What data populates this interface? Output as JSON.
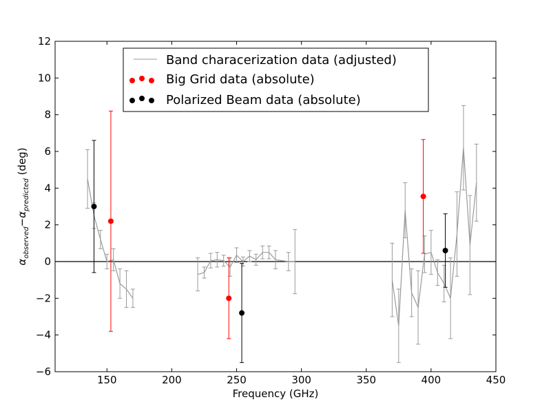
{
  "chart_data": {
    "type": "line",
    "title": "",
    "xlabel": "Frequency (GHz)",
    "ylabel_main": "α",
    "ylabel_sub1": "observed",
    "ylabel_minus": "−",
    "ylabel_main2": "α",
    "ylabel_sub2": "predicted",
    "ylabel_unit": " (deg)",
    "xlim": [
      110,
      450
    ],
    "ylim": [
      -6,
      12
    ],
    "xticks": [
      150,
      200,
      250,
      300,
      350,
      400,
      450
    ],
    "yticks": [
      -6,
      -4,
      -2,
      0,
      2,
      4,
      6,
      8,
      10,
      12
    ],
    "xtick_labels": [
      "150",
      "200",
      "250",
      "300",
      "350",
      "400",
      "450"
    ],
    "ytick_labels": [
      "−6",
      "−4",
      "−2",
      "0",
      "2",
      "4",
      "6",
      "8",
      "10",
      "12"
    ],
    "legend_position": "top-center",
    "zero_line": true,
    "series": [
      {
        "name": "Band characerization data (adjusted)",
        "style": "line-errorbar",
        "color": "#999999",
        "segments": [
          [
            {
              "x": 135,
              "y": 4.5,
              "err": 1.6
            },
            {
              "x": 140,
              "y": 2.5,
              "err": 0.7
            },
            {
              "x": 145,
              "y": 1.2,
              "err": 0.5
            },
            {
              "x": 150,
              "y": 0.0,
              "err": 0.4
            },
            {
              "x": 155,
              "y": 0.1,
              "err": 0.6
            },
            {
              "x": 160,
              "y": -1.2,
              "err": 0.8
            },
            {
              "x": 165,
              "y": -1.5,
              "err": 1.0
            },
            {
              "x": 170,
              "y": -2.0,
              "err": 0.5
            }
          ],
          [
            {
              "x": 220,
              "y": -0.7,
              "err": 0.9
            },
            {
              "x": 225,
              "y": -0.6,
              "err": 0.3
            },
            {
              "x": 230,
              "y": 0.05,
              "err": 0.4
            },
            {
              "x": 235,
              "y": 0.1,
              "err": 0.4
            },
            {
              "x": 240,
              "y": 0.05,
              "err": 0.3
            },
            {
              "x": 245,
              "y": -0.3,
              "err": 0.5
            },
            {
              "x": 250,
              "y": 0.35,
              "err": 0.4
            },
            {
              "x": 255,
              "y": 0.0,
              "err": 0.25
            },
            {
              "x": 260,
              "y": 0.3,
              "err": 0.3
            },
            {
              "x": 265,
              "y": 0.1,
              "err": 0.3
            },
            {
              "x": 270,
              "y": 0.5,
              "err": 0.35
            },
            {
              "x": 275,
              "y": 0.5,
              "err": 0.35
            },
            {
              "x": 280,
              "y": 0.1,
              "err": 0.5
            },
            {
              "x": 290,
              "y": 0.0,
              "err": 0.5
            },
            {
              "x": 295,
              "y": 0.0,
              "err": 1.75
            }
          ],
          [
            {
              "x": 370,
              "y": -1.0,
              "err": 2.0
            },
            {
              "x": 375,
              "y": -3.5,
              "err": 2.0
            },
            {
              "x": 380,
              "y": 2.8,
              "err": 1.5
            },
            {
              "x": 385,
              "y": -1.7,
              "err": 1.3
            },
            {
              "x": 390,
              "y": -2.5,
              "err": 2.0
            },
            {
              "x": 395,
              "y": 0.4,
              "err": 1.0
            },
            {
              "x": 400,
              "y": 0.5,
              "err": 1.2
            },
            {
              "x": 405,
              "y": -0.6,
              "err": 0.7
            },
            {
              "x": 410,
              "y": -1.2,
              "err": 1.0
            },
            {
              "x": 415,
              "y": -2.0,
              "err": 2.2
            },
            {
              "x": 420,
              "y": 1.5,
              "err": 2.3
            },
            {
              "x": 425,
              "y": 6.2,
              "err": 2.3
            },
            {
              "x": 430,
              "y": 0.9,
              "err": 2.7
            },
            {
              "x": 435,
              "y": 4.3,
              "err": 2.1
            }
          ]
        ]
      },
      {
        "name": "Big Grid data (absolute)",
        "style": "point-errorbar",
        "color": "#ff0000",
        "points": [
          {
            "x": 153,
            "y": 2.2,
            "err": 6.0
          },
          {
            "x": 244,
            "y": -2.0,
            "err": 2.2
          },
          {
            "x": 394,
            "y": 3.55,
            "err": 3.1
          }
        ]
      },
      {
        "name": "Polarized Beam data (absolute)",
        "style": "point-errorbar",
        "color": "#000000",
        "points": [
          {
            "x": 140,
            "y": 3.0,
            "err": 3.6
          },
          {
            "x": 254,
            "y": -2.8,
            "err": 2.7
          },
          {
            "x": 411,
            "y": 0.6,
            "err": 2.0
          }
        ]
      }
    ]
  }
}
